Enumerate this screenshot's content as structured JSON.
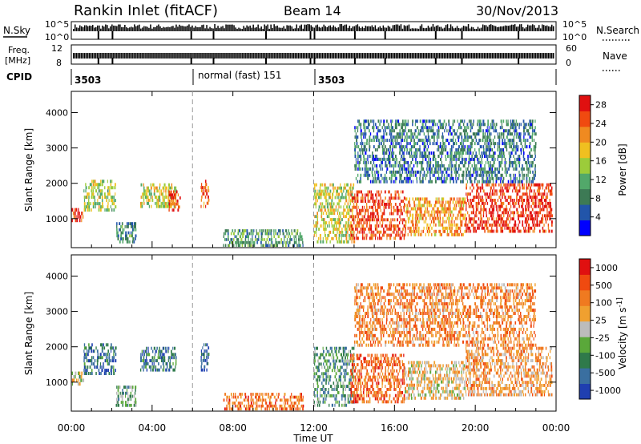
{
  "header": {
    "station": "Rankin Inlet (fitACF)",
    "beam": "Beam 14",
    "date": "30/Nov/2013"
  },
  "strips": {
    "nsky_label": "N.Sky",
    "nsearch_label": "N.Search",
    "nsky_ticks": [
      "10^5",
      "10^0"
    ],
    "nsearch_ticks": [
      "10^5",
      "10^0"
    ],
    "freq_label": "Freq.",
    "freq_unit": "[MHz]",
    "freq_ticks": [
      "12",
      "8"
    ],
    "nave_label": "Nave",
    "nave_ticks": [
      "60",
      "0"
    ],
    "cpid_label": "CPID",
    "cpid_segments": [
      {
        "label": "3503",
        "from": 0.0,
        "to": 6.0
      },
      {
        "label": "normal (fast)  151",
        "from": 6.0,
        "to": 12.0
      },
      {
        "label": "3503",
        "from": 12.0,
        "to": 24.0
      }
    ]
  },
  "chart_data": [
    {
      "type": "heatmap",
      "title": "",
      "xlabel": "Time UT",
      "ylabel": "Slant Range [km]",
      "xlim": [
        0,
        24
      ],
      "ylim": [
        180,
        4600
      ],
      "xticks": [
        "00:00",
        "04:00",
        "08:00",
        "12:00",
        "16:00",
        "20:00",
        "00:00"
      ],
      "xtick_values": [
        0,
        4,
        8,
        12,
        16,
        20,
        24
      ],
      "yticks": [
        1000,
        2000,
        3000,
        4000
      ],
      "mode_changes": [
        6.0,
        12.0
      ],
      "colorbar": {
        "label": "Power [dB]",
        "ticks": [
          "28",
          "24",
          "20",
          "16",
          "12",
          "8",
          "4"
        ],
        "tick_values": [
          28,
          24,
          20,
          16,
          12,
          8,
          4
        ],
        "range": [
          0,
          30
        ],
        "colors": [
          "#0000ff",
          "#2255aa",
          "#3d7a55",
          "#52a86a",
          "#9ccc3a",
          "#f0c020",
          "#f08a20",
          "#f04a10",
          "#e01010"
        ]
      },
      "regions": [
        {
          "t": [
            0.0,
            0.6
          ],
          "r": [
            900,
            1300
          ],
          "level": 0.9
        },
        {
          "t": [
            0.6,
            2.2
          ],
          "r": [
            1200,
            2100
          ],
          "level": 0.5
        },
        {
          "t": [
            2.2,
            3.2
          ],
          "r": [
            300,
            900
          ],
          "level": 0.3
        },
        {
          "t": [
            3.4,
            5.2
          ],
          "r": [
            1300,
            2000
          ],
          "level": 0.55
        },
        {
          "t": [
            4.8,
            5.4
          ],
          "r": [
            1200,
            1800
          ],
          "level": 0.85
        },
        {
          "t": [
            6.4,
            6.8
          ],
          "r": [
            1300,
            2100
          ],
          "level": 0.8
        },
        {
          "t": [
            7.5,
            11.5
          ],
          "r": [
            200,
            700
          ],
          "level": 0.35
        },
        {
          "t": [
            12.0,
            14.0
          ],
          "r": [
            300,
            2000
          ],
          "level": 0.55
        },
        {
          "t": [
            13.8,
            16.5
          ],
          "r": [
            400,
            1800
          ],
          "level": 0.85
        },
        {
          "t": [
            16.5,
            19.5
          ],
          "r": [
            500,
            1600
          ],
          "level": 0.7
        },
        {
          "t": [
            19.5,
            23.8
          ],
          "r": [
            600,
            2000
          ],
          "level": 0.9
        },
        {
          "t": [
            14.0,
            23.0
          ],
          "r": [
            2000,
            3800
          ],
          "level": 0.25
        }
      ]
    },
    {
      "type": "heatmap",
      "title": "",
      "xlabel": "Time UT",
      "ylabel": "Slant Range [km]",
      "xlim": [
        0,
        24
      ],
      "ylim": [
        180,
        4600
      ],
      "xticks": [
        "00:00",
        "04:00",
        "08:00",
        "12:00",
        "16:00",
        "20:00",
        "00:00"
      ],
      "xtick_values": [
        0,
        4,
        8,
        12,
        16,
        20,
        24
      ],
      "yticks": [
        1000,
        2000,
        3000,
        4000
      ],
      "mode_changes": [
        6.0,
        12.0
      ],
      "colorbar": {
        "label": "Velocity [m s^-1]",
        "ticks": [
          "1000",
          "500",
          "100",
          "25",
          "-25",
          "-100",
          "-500",
          "-1000"
        ],
        "tick_values": [
          1000,
          500,
          100,
          25,
          -25,
          -100,
          -500,
          -1000
        ],
        "range": [
          -1200,
          1200
        ],
        "colors": [
          "#1f3fb0",
          "#3a6fa0",
          "#2f7a4a",
          "#5aa83a",
          "#bcbcbc",
          "#f0a030",
          "#f07a20",
          "#f04a10",
          "#e01010"
        ]
      },
      "regions": [
        {
          "t": [
            0.0,
            0.6
          ],
          "r": [
            900,
            1300
          ],
          "level": 0.5
        },
        {
          "t": [
            0.6,
            2.2
          ],
          "r": [
            1200,
            2100
          ],
          "level": 0.2
        },
        {
          "t": [
            2.2,
            3.2
          ],
          "r": [
            300,
            900
          ],
          "level": 0.35
        },
        {
          "t": [
            3.4,
            5.2
          ],
          "r": [
            1300,
            2000
          ],
          "level": 0.2
        },
        {
          "t": [
            6.4,
            6.8
          ],
          "r": [
            1300,
            2100
          ],
          "level": 0.1
        },
        {
          "t": [
            7.5,
            11.5
          ],
          "r": [
            200,
            700
          ],
          "level": 0.75
        },
        {
          "t": [
            12.0,
            14.0
          ],
          "r": [
            300,
            2000
          ],
          "level": 0.3
        },
        {
          "t": [
            13.8,
            16.5
          ],
          "r": [
            400,
            1800
          ],
          "level": 0.78
        },
        {
          "t": [
            16.5,
            19.5
          ],
          "r": [
            500,
            1600
          ],
          "level": 0.55
        },
        {
          "t": [
            19.5,
            23.8
          ],
          "r": [
            600,
            2000
          ],
          "level": 0.65
        },
        {
          "t": [
            14.0,
            23.0
          ],
          "r": [
            2000,
            3800
          ],
          "level": 0.7
        }
      ]
    }
  ]
}
